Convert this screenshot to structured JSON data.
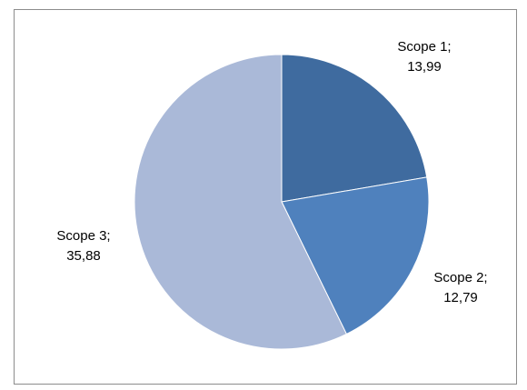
{
  "chart_data": {
    "type": "pie",
    "title": "",
    "legend": "none",
    "slices": [
      {
        "name": "Scope 1",
        "value": 13.99,
        "label_name": "Scope 1;",
        "label_value": "13,99",
        "color": "#3f6b9f"
      },
      {
        "name": "Scope 2",
        "value": 12.79,
        "label_name": "Scope 2;",
        "label_value": "12,79",
        "color": "#4f81bd"
      },
      {
        "name": "Scope 3",
        "value": 35.88,
        "label_name": "Scope 3;",
        "label_value": "35,88",
        "color": "#aab9d8"
      }
    ]
  }
}
